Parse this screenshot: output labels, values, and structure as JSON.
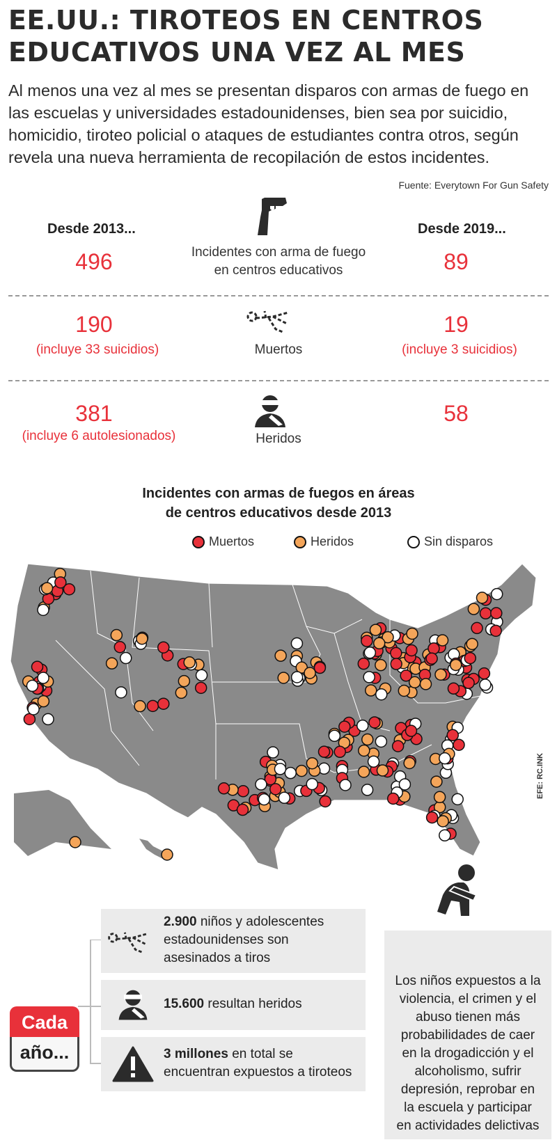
{
  "title": {
    "line1": "EE.UU.: TIROTEOS EN CENTROS",
    "line2": "EDUCATIVOS UNA VEZ AL MES"
  },
  "intro": {
    "line1": "Al menos una vez al mes se presentan disparos con armas de fuego en",
    "line2": "las escuelas y universidades estadounidenses, bien sea por suicidio,",
    "line3": "homicidio, tiroteo policial o ataques de estudiantes contra otros, según",
    "line4": "revela una nueva herramienta de recopilación de estos incidentes."
  },
  "source": "Fuente: Everytown For Gun Safety",
  "columns": {
    "left": "Desde 2013...",
    "right": "Desde 2019..."
  },
  "stats": [
    {
      "left": "496",
      "left_note": "",
      "right": "89",
      "right_note": "",
      "label_line1": "Incidentes con arma de fuego",
      "label_line2": "en centros educativos",
      "icon": "gun-icon"
    },
    {
      "left": "190",
      "left_note": "(incluye 33 suicidios)",
      "right": "19",
      "right_note": "(incluye 3 suicidios)",
      "label_line1": "Muertos",
      "label_line2": "",
      "icon": "body-outline-icon"
    },
    {
      "left": "381",
      "left_note": "(incluye 6 autolesionados)",
      "right": "58",
      "right_note": "",
      "label_line1": "Heridos",
      "label_line2": "",
      "icon": "injured-person-icon"
    }
  ],
  "map": {
    "title_line1": "Incidentes con armas de fuegos en áreas",
    "title_line2": "de centros educativos desde 2013",
    "legend": [
      {
        "label": "Muertos",
        "color": "#e8313a"
      },
      {
        "label": "Heridos",
        "color": "#f4a55a"
      },
      {
        "label": "Sin disparos",
        "color": "#ffffff"
      }
    ],
    "map_color": "#8a8a8a",
    "credit": "EFE: RC.INK"
  },
  "yearly": {
    "badge_top": "Cada",
    "badge_bottom": "año...",
    "items": [
      {
        "bold": "2.900",
        "text_a": " niños y adolescentes",
        "text_b": "estadounidenses son",
        "text_c": "asesinados a tiros",
        "icon": "body-outline-icon"
      },
      {
        "bold": "15.600",
        "text_a": " resultan heridos",
        "text_b": "",
        "text_c": "",
        "icon": "injured-person-icon"
      },
      {
        "bold": "3 millones",
        "text_a": " en total se",
        "text_b": "encuentran expuestos a tiroteos",
        "text_c": "",
        "icon": "warning-icon"
      }
    ]
  },
  "side_note": {
    "icon": "distressed-child-icon",
    "lines": [
      "Los niños expuestos a la",
      "violencia, el crimen y el",
      "abuso tienen más",
      "probabilidades de caer",
      "en la drogadicción y el",
      "alcoholismo, sufrir",
      "depresión, reprobar en",
      "la escuela y participar",
      "en actividades delictivas"
    ]
  },
  "colors": {
    "accent": "#e8313a",
    "wounded": "#f4a55a",
    "panel": "#ebebeb"
  }
}
